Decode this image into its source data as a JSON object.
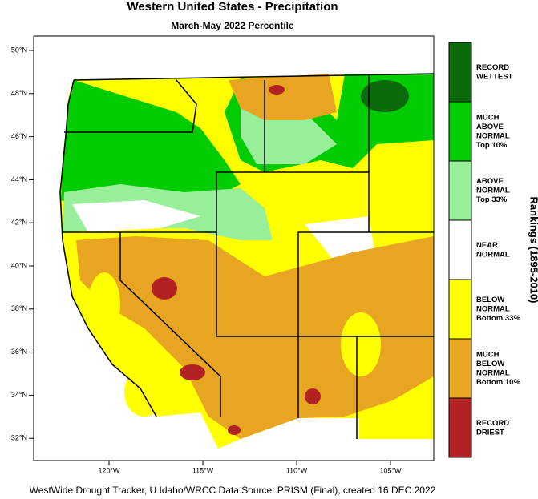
{
  "header": {
    "title": "Western United States - Precipitation",
    "subtitle": "March-May 2022 Percentile"
  },
  "map": {
    "lat_labels": [
      "50°N",
      "48°N",
      "46°N",
      "44°N",
      "42°N",
      "40°N",
      "38°N",
      "36°N",
      "34°N",
      "32°N"
    ],
    "lon_labels": [
      "120°W",
      "115°W",
      "110°W",
      "105°W"
    ]
  },
  "legend": {
    "title": "Rankings (1895-2010)",
    "entries": [
      {
        "color": "#0b6b0b",
        "lines": [
          "RECORD",
          "WETTEST"
        ]
      },
      {
        "color": "#00cc00",
        "lines": [
          "MUCH",
          "ABOVE",
          "NORMAL",
          "Top 10%"
        ]
      },
      {
        "color": "#99ee99",
        "lines": [
          "ABOVE",
          "NORMAL",
          "Top 33%"
        ]
      },
      {
        "color": "#ffffff",
        "lines": [
          "NEAR",
          "NORMAL"
        ]
      },
      {
        "color": "#ffff00",
        "lines": [
          "BELOW",
          "NORMAL",
          "Bottom 33%"
        ]
      },
      {
        "color": "#e8a521",
        "lines": [
          "MUCH",
          "BELOW",
          "NORMAL",
          "Bottom 10%"
        ]
      },
      {
        "color": "#b22222",
        "lines": [
          "RECORD",
          "DRIEST"
        ]
      }
    ]
  },
  "footer": "WestWide Drought Tracker, U Idaho/WRCC Data Source: PRISM (Final), created 16 DEC 2022"
}
